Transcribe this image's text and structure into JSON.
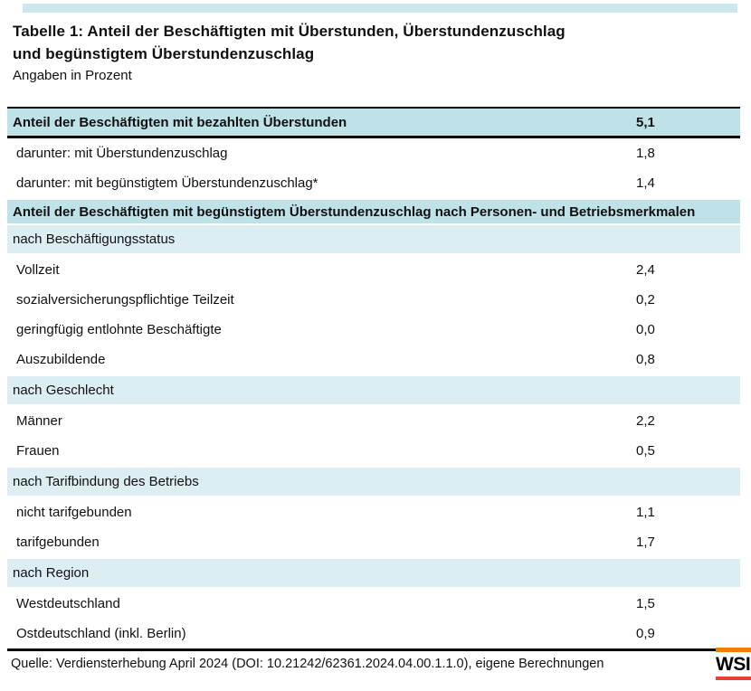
{
  "page": {
    "title_line1": "Tabelle 1: Anteil der Beschäftigten mit Überstunden, Überstundenzuschlag",
    "title_line2": "und begünstigtem Überstundenzuschlag",
    "subtitle": "Angaben in Prozent"
  },
  "table": {
    "rows": [
      {
        "type": "header",
        "label": "Anteil der Beschäftigten mit bezahlten Überstunden",
        "value": "5,1"
      },
      {
        "type": "data",
        "label": "darunter: mit Überstundenzuschlag",
        "value": "1,8"
      },
      {
        "type": "data",
        "label": "darunter: mit begünstigtem Überstundenzuschlag*",
        "value": "1,4"
      },
      {
        "type": "section",
        "label": "Anteil der Beschäftigten mit begünstigtem Überstundenzuschlag nach Personen- und Betriebsmerkmalen",
        "value": ""
      },
      {
        "type": "group",
        "label": "nach Beschäftigungsstatus",
        "value": ""
      },
      {
        "type": "data",
        "label": "Vollzeit",
        "value": "2,4"
      },
      {
        "type": "data",
        "label": "sozialversicherungspflichtige Teilzeit",
        "value": "0,2"
      },
      {
        "type": "data",
        "label": "geringfügig entlohnte Beschäftigte",
        "value": "0,0"
      },
      {
        "type": "data",
        "label": "Auszubildende",
        "value": "0,8"
      },
      {
        "type": "group",
        "label": "nach Geschlecht",
        "value": ""
      },
      {
        "type": "data",
        "label": "Männer",
        "value": "2,2"
      },
      {
        "type": "data",
        "label": "Frauen",
        "value": "0,5"
      },
      {
        "type": "group",
        "label": "nach Tarifbindung des Betriebs",
        "value": ""
      },
      {
        "type": "data",
        "label": "nicht tarifgebunden",
        "value": "1,1"
      },
      {
        "type": "data",
        "label": "tarifgebunden",
        "value": "1,7"
      },
      {
        "type": "group",
        "label": "nach Region",
        "value": ""
      },
      {
        "type": "data",
        "label": "Westdeutschland",
        "value": "1,5"
      },
      {
        "type": "data",
        "label": "Ostdeutschland (inkl. Berlin)",
        "value": "0,9"
      }
    ]
  },
  "footer": {
    "source": "Quelle: Verdiensterhebung April 2024 (DOI: 10.21242/62361.2024.04.00.1.1.0), eigene Berechnungen",
    "logo_text": "WSI"
  },
  "colors": {
    "header_blue": "#bfe1e8",
    "group_blue": "#ddeef3",
    "top_strip_blue": "#cde7ee",
    "logo_orange": "#f07d00",
    "logo_red": "#e8402a"
  }
}
